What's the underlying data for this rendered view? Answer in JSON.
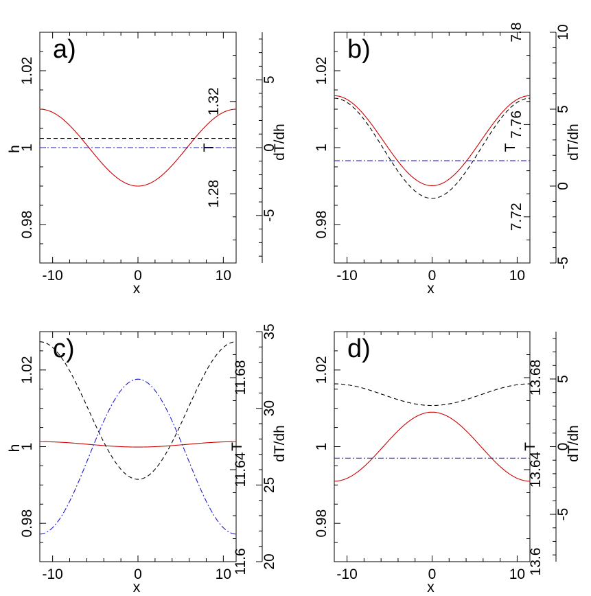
{
  "figure": {
    "title": ""
  },
  "colors": {
    "h_curve": "#cc0000",
    "T_curve": "#000000",
    "dTdh_curve": "#1a1acc",
    "axis": "#000000"
  },
  "chart_data": [
    {
      "type": "line",
      "panel_label": "a)",
      "xlabel": "x",
      "ylabel": "h",
      "y2label": "T",
      "y3label": "dT/dh",
      "xlim": [
        -11.5,
        11.5
      ],
      "xticks": [
        -10,
        0,
        10
      ],
      "xtick_labels": [
        "-10",
        "0",
        "10"
      ],
      "ylim": [
        0.97,
        1.03
      ],
      "yticks": [
        0.98,
        1,
        1.02
      ],
      "ytick_labels": [
        "0.98",
        "1",
        "1.02"
      ],
      "y2lim": [
        1.25,
        1.35
      ],
      "y2ticks": [
        1.28,
        1.32
      ],
      "y2tick_labels": [
        "1.28",
        "1.32"
      ],
      "y3lim": [
        -8.5,
        8.5
      ],
      "y3ticks": [
        -5,
        0,
        5
      ],
      "y3tick_labels": [
        "-5",
        "0",
        "5"
      ],
      "series": [
        {
          "name": "h",
          "axis": "y",
          "style": "solid",
          "color_key": "h_curve",
          "model": "cos",
          "offset": 1.0,
          "amp": 0.01
        },
        {
          "name": "T",
          "axis": "y2",
          "style": "dashed",
          "color_key": "T_curve",
          "model": "cos",
          "offset": 1.304,
          "amp": 0.0
        },
        {
          "name": "dT/dh",
          "axis": "y3",
          "style": "dashdot",
          "color_key": "dTdh_curve",
          "model": "cos",
          "offset": 0.0,
          "amp": 0.0
        }
      ]
    },
    {
      "type": "line",
      "panel_label": "b)",
      "xlabel": "x",
      "ylabel": "h",
      "y2label": "T",
      "y3label": "dT/dh",
      "xlim": [
        -11.5,
        11.5
      ],
      "xticks": [
        -10,
        0,
        10
      ],
      "xtick_labels": [
        "-10",
        "0",
        "10"
      ],
      "ylim": [
        0.97,
        1.03
      ],
      "yticks": [
        0.98,
        1,
        1.02
      ],
      "ytick_labels": [
        "0.98",
        "1",
        "1.02"
      ],
      "y2lim": [
        7.7,
        7.8
      ],
      "y2ticks": [
        7.72,
        7.76,
        7.8
      ],
      "y2tick_labels": [
        "7.72",
        "7.76",
        "7.8"
      ],
      "y3lim": [
        -5,
        10
      ],
      "y3ticks": [
        -5,
        0,
        5,
        10
      ],
      "y3tick_labels": [
        "-5",
        "0",
        "5",
        "10"
      ],
      "series": [
        {
          "name": "h",
          "axis": "y",
          "style": "solid",
          "color_key": "h_curve",
          "model": "cos",
          "offset": 1.0018,
          "amp": 0.0117
        },
        {
          "name": "T",
          "axis": "y2",
          "style": "dashed",
          "color_key": "T_curve",
          "model": "cos",
          "offset": 7.7497,
          "amp": 0.0217
        },
        {
          "name": "dT/dh",
          "axis": "y3",
          "style": "dashdot",
          "color_key": "dTdh_curve",
          "model": "cos",
          "offset": 1.65,
          "amp": 0.0
        }
      ]
    },
    {
      "type": "line",
      "panel_label": "c)",
      "xlabel": "x",
      "ylabel": "h",
      "y2label": "T",
      "y3label": "dT/dh",
      "xlim": [
        -11.5,
        11.5
      ],
      "xticks": [
        -10,
        0,
        10
      ],
      "xtick_labels": [
        "-10",
        "0",
        "10"
      ],
      "ylim": [
        0.97,
        1.03
      ],
      "yticks": [
        0.98,
        1,
        1.02
      ],
      "ytick_labels": [
        "0.98",
        "1",
        "1.02"
      ],
      "y2lim": [
        11.6,
        11.7
      ],
      "y2ticks": [
        11.6,
        11.64,
        11.68
      ],
      "y2tick_labels": [
        "11.6",
        "11.64",
        "11.68"
      ],
      "y3lim": [
        20,
        35
      ],
      "y3ticks": [
        20,
        25,
        30,
        35
      ],
      "y3tick_labels": [
        "20",
        "25",
        "30",
        "35"
      ],
      "series": [
        {
          "name": "h",
          "axis": "y",
          "style": "solid",
          "color_key": "h_curve",
          "model": "cos",
          "offset": 1.0006,
          "amp": 0.0007
        },
        {
          "name": "T",
          "axis": "y2",
          "style": "dashed",
          "color_key": "T_curve",
          "model": "cos",
          "offset": 11.6657,
          "amp": 0.0299
        },
        {
          "name": "dT/dh",
          "axis": "y3",
          "style": "dashdot",
          "color_key": "dTdh_curve",
          "model": "cos",
          "offset": 26.85,
          "amp": -5.05
        }
      ]
    },
    {
      "type": "line",
      "panel_label": "d)",
      "xlabel": "x",
      "ylabel": "h",
      "y2label": "T",
      "y3label": "dT/dh",
      "xlim": [
        -11.5,
        11.5
      ],
      "xticks": [
        -10,
        0,
        10
      ],
      "xtick_labels": [
        "-10",
        "0",
        "10"
      ],
      "ylim": [
        0.97,
        1.03
      ],
      "yticks": [
        0.98,
        1,
        1.02
      ],
      "ytick_labels": [
        "0.98",
        "1",
        "1.02"
      ],
      "y2lim": [
        13.6,
        13.7
      ],
      "y2ticks": [
        13.6,
        13.64,
        13.68
      ],
      "y2tick_labels": [
        "13.6",
        "13.64",
        "13.68"
      ],
      "y3lim": [
        -8.5,
        8.5
      ],
      "y3ticks": [
        -5,
        0,
        5
      ],
      "y3tick_labels": [
        "-5",
        "0",
        "5"
      ],
      "series": [
        {
          "name": "h",
          "axis": "y",
          "style": "solid",
          "color_key": "h_curve",
          "model": "cos",
          "offset": 1.0,
          "amp": -0.009
        },
        {
          "name": "T",
          "axis": "y2",
          "style": "dashed",
          "color_key": "T_curve",
          "model": "cos",
          "offset": 13.6726,
          "amp": 0.0047
        },
        {
          "name": "dT/dh",
          "axis": "y3",
          "style": "dashdot",
          "color_key": "dTdh_curve",
          "model": "cos",
          "offset": -0.85,
          "amp": 0.0
        }
      ]
    }
  ]
}
